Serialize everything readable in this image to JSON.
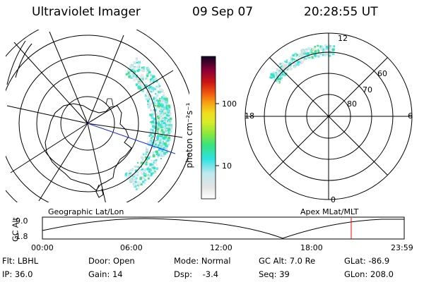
{
  "header": {
    "instrument": "Ultraviolet Imager",
    "date": "09 Sep 07",
    "time": "20:28:55 UT"
  },
  "geo_map": {
    "label": "Geographic Lat/Lon"
  },
  "mag_map": {
    "label": "Apex MLat/MLT",
    "mlt_labels": {
      "top": "12",
      "right": "6",
      "bottom": "0",
      "left": "18"
    },
    "lat_labels": [
      "60",
      "70",
      "80"
    ]
  },
  "colorbar": {
    "unit_label": "photon cm⁻²s⁻¹",
    "ticks": [
      "100",
      "10"
    ],
    "colors": [
      "#ffffff",
      "#e6e6e6",
      "#2ee2e2",
      "#39e27a",
      "#6ee63a",
      "#c8ec2a",
      "#f0e21e",
      "#f8b014",
      "#f87a10",
      "#e83c10",
      "#c81010",
      "#a00028",
      "#780038",
      "#4a0040",
      "#200030"
    ]
  },
  "altitude_plot": {
    "ylabel": "GC Alt",
    "ymax": "9.0",
    "ymin": "1.8",
    "xticks": [
      "00:00",
      "06:00",
      "12:00",
      "18:00",
      "23:59"
    ],
    "current_time_frac": 0.8535,
    "marker_color": "#ff0000"
  },
  "status": {
    "row1": [
      "Flt: LBHL",
      "Door: Open",
      "Mode: Normal",
      "GC Alt: 7.0 Re",
      "GLat: -86.9"
    ],
    "row2": [
      "IP: 36.0",
      "Gain: 14",
      "Dsp:    -3.4",
      "Seq: 39",
      "GLon: 208.0"
    ]
  }
}
